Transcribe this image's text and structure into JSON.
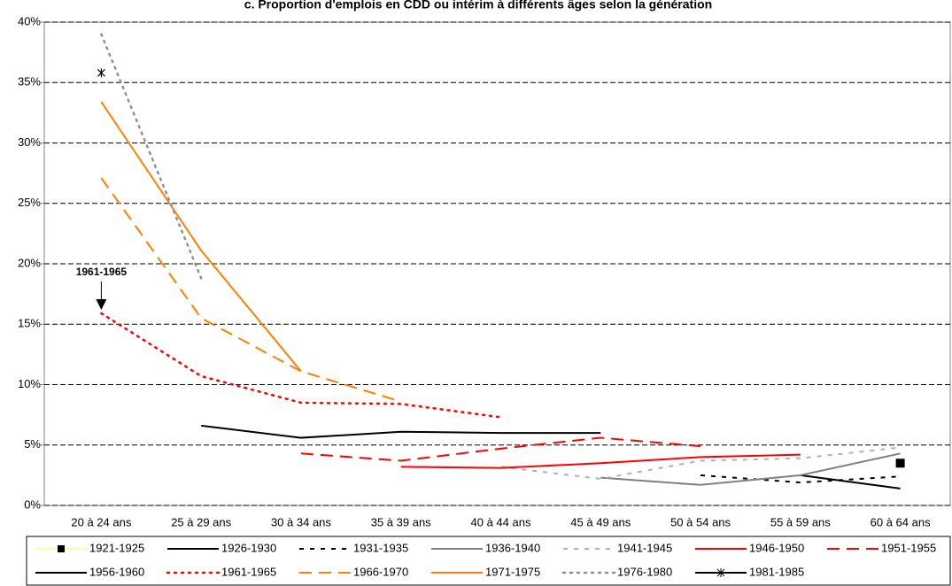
{
  "chart_data": {
    "type": "line",
    "title": "c. Proportion d'emplois en CDD ou intérim à différents âges selon la génération",
    "categories": [
      "20 à 24 ans",
      "25 à 29 ans",
      "30 à 34 ans",
      "35 à 39 ans",
      "40 à 44 ans",
      "45 à 49 ans",
      "50 à 54 ans",
      "55 à 59 ans",
      "60 à 64 ans"
    ],
    "ylim": [
      0,
      40
    ],
    "yticks": [
      {
        "value": 0,
        "label": "0%"
      },
      {
        "value": 5,
        "label": "5%"
      },
      {
        "value": 10,
        "label": "10%"
      },
      {
        "value": 15,
        "label": "15%"
      },
      {
        "value": 20,
        "label": "20%"
      },
      {
        "value": 25,
        "label": "25%"
      },
      {
        "value": 30,
        "label": "30%"
      },
      {
        "value": 35,
        "label": "35%"
      },
      {
        "value": 40,
        "label": "40%"
      }
    ],
    "grid": true,
    "legend": "bottom",
    "annotation": "1961-1965",
    "series": [
      {
        "name": "1921-1925",
        "color": "#000000",
        "style": "none",
        "marker": "square",
        "values": [
          null,
          null,
          null,
          null,
          null,
          null,
          null,
          null,
          3.5
        ]
      },
      {
        "name": "1926-1930",
        "color": "#000000",
        "style": "solid",
        "values": [
          null,
          null,
          null,
          null,
          null,
          null,
          null,
          2.5,
          1.4
        ]
      },
      {
        "name": "1931-1935",
        "color": "#000000",
        "style": "dashed",
        "values": [
          null,
          null,
          null,
          null,
          null,
          null,
          2.5,
          1.9,
          2.4
        ]
      },
      {
        "name": "1936-1940",
        "color": "#808080",
        "style": "solid",
        "values": [
          null,
          null,
          null,
          null,
          null,
          2.3,
          1.7,
          2.5,
          4.3
        ]
      },
      {
        "name": "1941-1945",
        "color": "#b0b0b0",
        "style": "dashed",
        "values": [
          null,
          null,
          null,
          null,
          3.2,
          2.2,
          3.7,
          3.9,
          4.8
        ]
      },
      {
        "name": "1946-1950",
        "color": "#ff0000",
        "style": "solid",
        "values": [
          null,
          null,
          null,
          3.2,
          3.1,
          3.5,
          4.0,
          4.2,
          null
        ]
      },
      {
        "name": "1951-1955",
        "color": "#ff0000",
        "style": "longdash",
        "values": [
          null,
          null,
          4.3,
          3.7,
          4.7,
          5.6,
          4.9,
          null,
          null
        ]
      },
      {
        "name": "1956-1960",
        "color": "#000000",
        "style": "solid",
        "values": [
          null,
          6.6,
          5.6,
          6.1,
          6.0,
          6.0,
          null,
          null,
          null
        ]
      },
      {
        "name": "1961-1965",
        "color": "#ff0000",
        "style": "dotted",
        "values": [
          15.9,
          10.7,
          8.5,
          8.4,
          7.3,
          null,
          null,
          null,
          null
        ]
      },
      {
        "name": "1966-1970",
        "color": "#ff8000",
        "style": "longdash",
        "values": [
          27.1,
          15.5,
          11.1,
          8.6,
          null,
          null,
          null,
          null,
          null
        ]
      },
      {
        "name": "1971-1975",
        "color": "#ff8000",
        "style": "solid",
        "values": [
          33.4,
          21.1,
          11.1,
          null,
          null,
          null,
          null,
          null,
          null
        ]
      },
      {
        "name": "1976-1980",
        "color": "#909090",
        "style": "dotted",
        "values": [
          39.0,
          18.8,
          null,
          null,
          null,
          null,
          null,
          null,
          null
        ]
      },
      {
        "name": "1981-1985",
        "color": "#000000",
        "style": "solid",
        "marker": "star",
        "values": [
          35.8,
          null,
          null,
          null,
          null,
          null,
          null,
          null,
          null
        ]
      }
    ]
  }
}
